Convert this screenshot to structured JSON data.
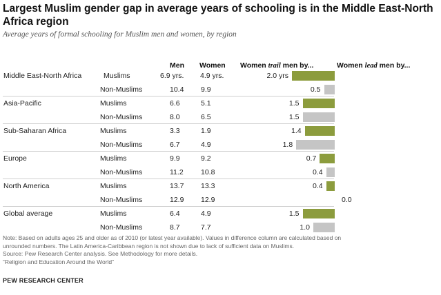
{
  "title": "Largest Muslim gender gap in average years of schooling is in the Middle East-North Africa region",
  "subtitle": "Average years of formal schooling for Muslim men and women, by region",
  "headers": {
    "men": "Men",
    "women": "Women",
    "trail_prefix": "Women ",
    "trail_em": "trail",
    "trail_suffix": " men by...",
    "lead_prefix": "Women ",
    "lead_em": "lead",
    "lead_suffix": " men by..."
  },
  "colors": {
    "muslims_bar": "#8c9c3d",
    "nonmuslims_bar": "#c5c5c5"
  },
  "chart_data": {
    "type": "bar",
    "title": "Largest Muslim gender gap in average years of schooling is in the Middle East-North Africa region",
    "subtitle": "Average years of formal schooling for Muslim men and women, by region",
    "columns": [
      "Men",
      "Women",
      "Women trail men by...",
      "Women lead men by..."
    ],
    "groups": [
      {
        "region": "Middle East-North Africa",
        "rows": [
          {
            "group": "Muslims",
            "men": "6.9 yrs.",
            "women": "4.9 yrs.",
            "gap": 2.0,
            "gap_label": "2.0 yrs"
          },
          {
            "group": "Non-Muslims",
            "men": "10.4",
            "women": "9.9",
            "gap": 0.5,
            "gap_label": "0.5"
          }
        ]
      },
      {
        "region": "Asia-Pacific",
        "rows": [
          {
            "group": "Muslims",
            "men": "6.6",
            "women": "5.1",
            "gap": 1.5,
            "gap_label": "1.5"
          },
          {
            "group": "Non-Muslims",
            "men": "8.0",
            "women": "6.5",
            "gap": 1.5,
            "gap_label": "1.5"
          }
        ]
      },
      {
        "region": "Sub-Saharan Africa",
        "rows": [
          {
            "group": "Muslims",
            "men": "3.3",
            "women": "1.9",
            "gap": 1.4,
            "gap_label": "1.4"
          },
          {
            "group": "Non-Muslims",
            "men": "6.7",
            "women": "4.9",
            "gap": 1.8,
            "gap_label": "1.8"
          }
        ]
      },
      {
        "region": "Europe",
        "rows": [
          {
            "group": "Muslims",
            "men": "9.9",
            "women": "9.2",
            "gap": 0.7,
            "gap_label": "0.7"
          },
          {
            "group": "Non-Muslims",
            "men": "11.2",
            "women": "10.8",
            "gap": 0.4,
            "gap_label": "0.4"
          }
        ]
      },
      {
        "region": "North America",
        "rows": [
          {
            "group": "Muslims",
            "men": "13.7",
            "women": "13.3",
            "gap": 0.4,
            "gap_label": "0.4"
          },
          {
            "group": "Non-Muslims",
            "men": "12.9",
            "women": "12.9",
            "gap": 0.0,
            "gap_label": "0.0"
          }
        ]
      },
      {
        "region": "Global average",
        "rows": [
          {
            "group": "Muslims",
            "men": "6.4",
            "women": "4.9",
            "gap": 1.5,
            "gap_label": "1.5"
          },
          {
            "group": "Non-Muslims",
            "men": "8.7",
            "women": "7.7",
            "gap": 1.0,
            "gap_label": "1.0"
          }
        ]
      }
    ]
  },
  "notes": [
    "Note: Based on adults ages 25 and older as of 2010 (or latest year available). Values in difference column are calculated based on",
    "unrounded numbers. The Latin America-Caribbean region is not shown due to lack of sufficient data on Muslims.",
    "Source: Pew Research Center analysis. See Methodology for more details.",
    "“Religion and Education Around the World”"
  ],
  "brand": "PEW RESEARCH CENTER"
}
